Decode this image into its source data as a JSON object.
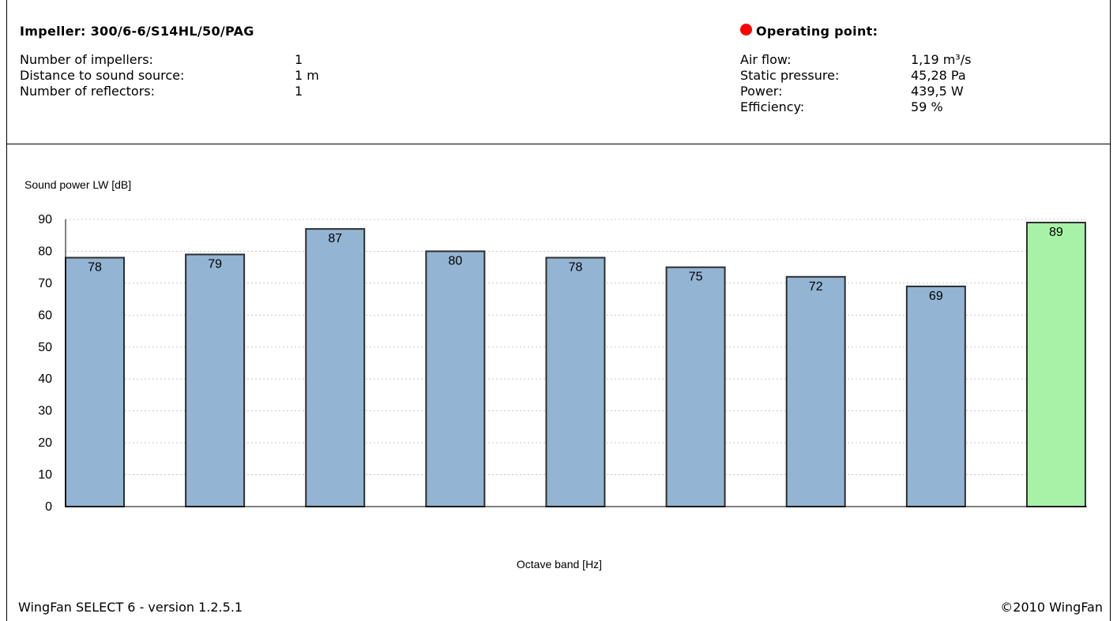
{
  "header": {
    "impeller_label": "Impeller:",
    "impeller_value": "300/6-6/S14HL/50/PAG",
    "left_rows": [
      {
        "label": "Number of impellers:",
        "value": "1"
      },
      {
        "label": "Distance to sound source:",
        "value": "1 m"
      },
      {
        "label": "Number of reflectors:",
        "value": "1"
      }
    ],
    "operating_title": "Operating point:",
    "operating_dot_color": "#ff0000",
    "right_rows": [
      {
        "label": "Air flow:",
        "value": "1,19 m³/s"
      },
      {
        "label": "Static pressure:",
        "value": "45,28 Pa"
      },
      {
        "label": "Power:",
        "value": "439,5 W"
      },
      {
        "label": "Efficiency:",
        "value": "59 %"
      }
    ]
  },
  "chart_data": {
    "type": "bar",
    "ylabel": "Sound power LW [dB]",
    "xlabel": "Octave band [Hz]",
    "ylim": [
      0,
      90
    ],
    "yticks": [
      0,
      10,
      20,
      30,
      40,
      50,
      60,
      70,
      80,
      90
    ],
    "grid": true,
    "values": [
      78,
      79,
      87,
      80,
      78,
      75,
      72,
      69,
      89
    ],
    "bar_colors": [
      "#93b4d3",
      "#93b4d3",
      "#93b4d3",
      "#93b4d3",
      "#93b4d3",
      "#93b4d3",
      "#93b4d3",
      "#93b4d3",
      "#a8f2a8"
    ]
  },
  "footer": {
    "left": "WingFan SELECT 6 - version 1.2.5.1",
    "right": "©2010 WingFan"
  }
}
